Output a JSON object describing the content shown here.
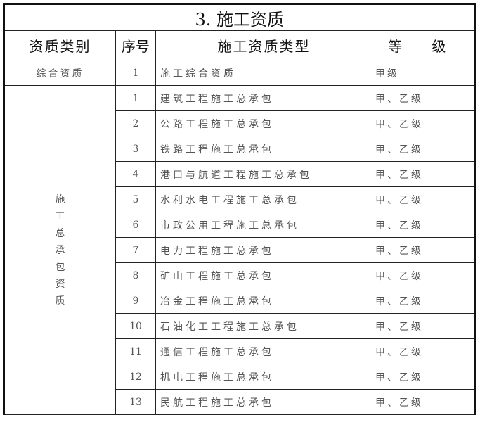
{
  "title": "3. 施工资质",
  "headers": [
    "资质类别",
    "序号",
    "施工资质类型",
    "等 级"
  ],
  "comprehensive": {
    "category": "综合资质",
    "no": "1",
    "type": "施工综合资质",
    "grade": "甲级"
  },
  "general_category": "施工总承包资质",
  "general_category_chars": [
    "施",
    "工",
    "总",
    "承",
    "包",
    "资",
    "质"
  ],
  "rows": [
    {
      "no": "1",
      "type": "建筑工程施工总承包",
      "grade": "甲、乙级"
    },
    {
      "no": "2",
      "type": "公路工程施工总承包",
      "grade": "甲、乙级"
    },
    {
      "no": "3",
      "type": "铁路工程施工总承包",
      "grade": "甲、乙级"
    },
    {
      "no": "4",
      "type": "港口与航道工程施工总承包",
      "grade": "甲、乙级"
    },
    {
      "no": "5",
      "type": "水利水电工程施工总承包",
      "grade": "甲、乙级"
    },
    {
      "no": "6",
      "type": "市政公用工程施工总承包",
      "grade": "甲、乙级"
    },
    {
      "no": "7",
      "type": "电力工程施工总承包",
      "grade": "甲、乙级"
    },
    {
      "no": "8",
      "type": "矿山工程施工总承包",
      "grade": "甲、乙级"
    },
    {
      "no": "9",
      "type": "冶金工程施工总承包",
      "grade": "甲、乙级"
    },
    {
      "no": "10",
      "type": "石油化工工程施工总承包",
      "grade": "甲、乙级"
    },
    {
      "no": "11",
      "type": "通信工程施工总承包",
      "grade": "甲、乙级"
    },
    {
      "no": "12",
      "type": "机电工程施工总承包",
      "grade": "甲、乙级"
    },
    {
      "no": "13",
      "type": "民航工程施工总承包",
      "grade": "甲、乙级"
    }
  ]
}
